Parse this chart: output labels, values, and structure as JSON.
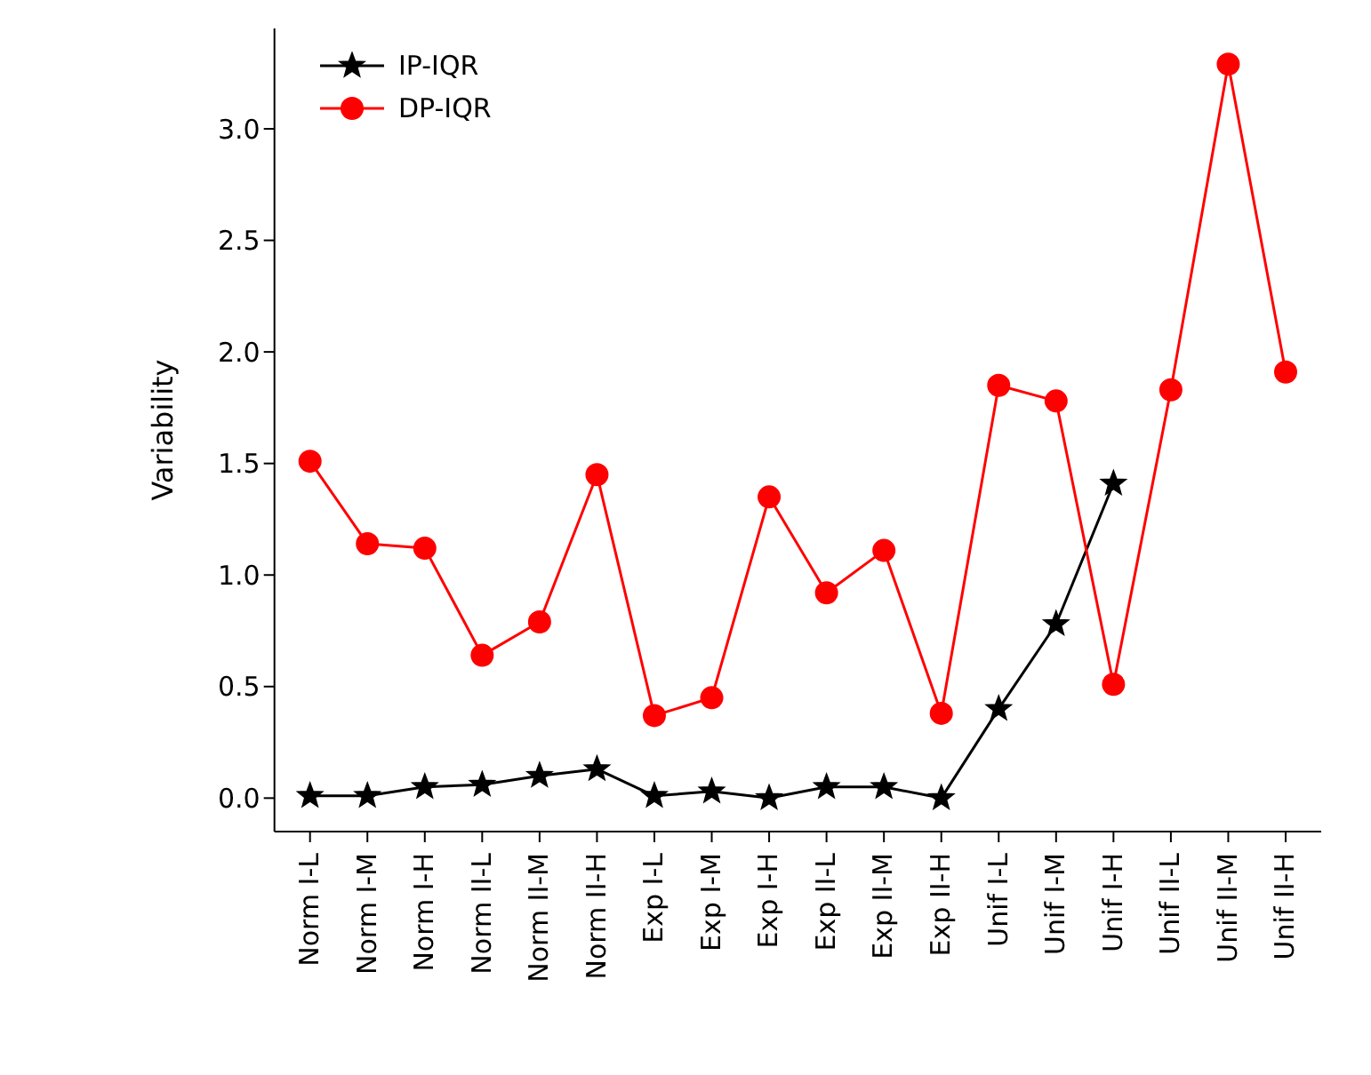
{
  "chart_data": {
    "type": "line",
    "ylabel": "Variability",
    "categories": [
      "Norm I-L",
      "Norm I-M",
      "Norm I-H",
      "Norm II-L",
      "Norm II-M",
      "Norm II-H",
      "Exp I-L",
      "Exp I-M",
      "Exp I-H",
      "Exp II-L",
      "Exp II-M",
      "Exp II-H",
      "Unif I-L",
      "Unif I-M",
      "Unif I-H",
      "Unif II-L",
      "Unif II-M",
      "Unif II-H"
    ],
    "series": [
      {
        "name": "IP-IQR",
        "color": "#000000",
        "marker": "star",
        "values": [
          0.01,
          0.01,
          0.05,
          0.06,
          0.1,
          0.13,
          0.01,
          0.03,
          0.0,
          0.05,
          0.05,
          0.0,
          0.4,
          0.78,
          1.41,
          null,
          null,
          null
        ]
      },
      {
        "name": "DP-IQR",
        "color": "#ff0000",
        "marker": "circle",
        "values": [
          1.51,
          1.14,
          1.12,
          0.64,
          0.79,
          1.45,
          0.37,
          0.45,
          1.35,
          0.92,
          1.11,
          0.38,
          1.85,
          1.78,
          0.51,
          1.83,
          3.29,
          1.91
        ]
      }
    ],
    "ylim": [
      -0.15,
      3.45
    ],
    "yticks": [
      {
        "value": 0,
        "label": "0.0"
      },
      {
        "value": 0.5,
        "label": "0.5"
      },
      {
        "value": 1,
        "label": "1.0"
      },
      {
        "value": 1.5,
        "label": "1.5"
      },
      {
        "value": 2,
        "label": "2.0"
      },
      {
        "value": 2.5,
        "label": "2.5"
      },
      {
        "value": 3,
        "label": "3.0"
      }
    ],
    "grid": false,
    "legend": "top left"
  }
}
